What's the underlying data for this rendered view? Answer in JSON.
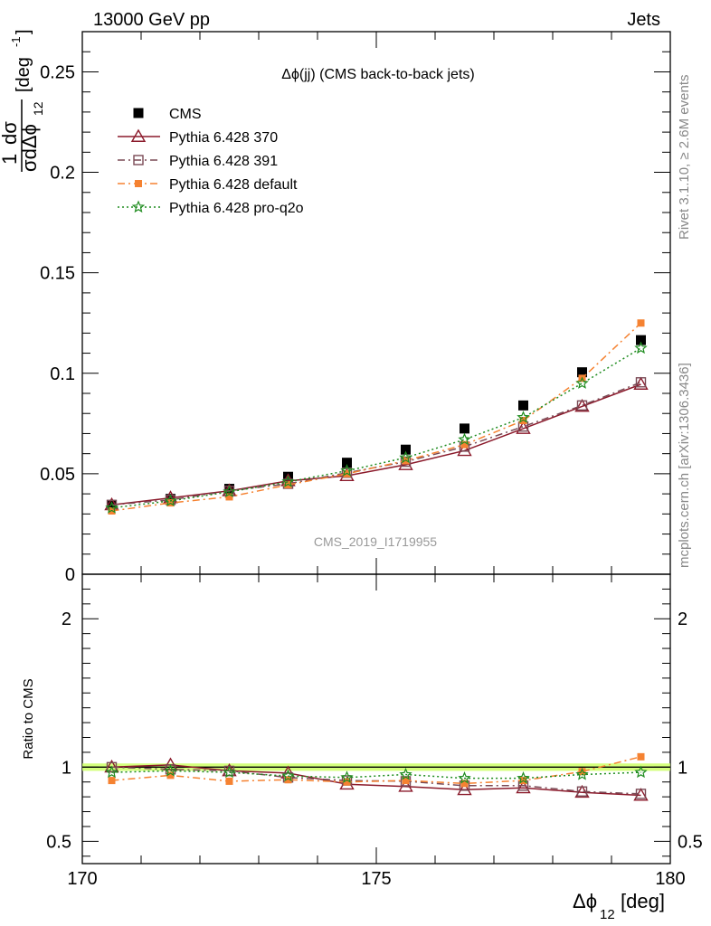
{
  "header": {
    "left": "13000 GeV pp",
    "right": "Jets"
  },
  "side_labels": {
    "rivet": "Rivet 3.1.10, ≥ 2.6M events",
    "mcplots": "mcplots.cern.ch [arXiv:1306.3436]"
  },
  "analysis_id": "CMS_2019_I1719955",
  "chart_data": [
    {
      "type": "scatter",
      "title": "Δϕ(jj) (CMS back-to-back jets)",
      "ylabel": "1/σ dσ/dΔϕ_12 [deg^-1]",
      "xlim": [
        170,
        180
      ],
      "ylim": [
        0,
        0.27
      ],
      "yticks": [
        0,
        0.05,
        0.1,
        0.15,
        0.2,
        0.25
      ],
      "ytick_labels": [
        "0",
        "0.05",
        "0.1",
        "0.15",
        "0.2",
        "0.25"
      ],
      "legend_position": "top-left",
      "x": [
        170.5,
        171.5,
        172.5,
        173.5,
        174.5,
        175.5,
        176.5,
        177.5,
        178.5,
        179.5
      ],
      "series": [
        {
          "name": "CMS",
          "color": "#000000",
          "marker": "filled-square",
          "line": "none",
          "values": [
            0.0345,
            0.0375,
            0.0425,
            0.0485,
            0.0555,
            0.062,
            0.0725,
            0.084,
            0.1005,
            0.1165
          ]
        },
        {
          "name": "Pythia 6.428 370",
          "color": "#8b1a2b",
          "marker": "open-triangle",
          "line": "solid",
          "values": [
            0.0345,
            0.038,
            0.0415,
            0.0465,
            0.049,
            0.0545,
            0.0615,
            0.0725,
            0.0835,
            0.0945
          ]
        },
        {
          "name": "Pythia 6.428 391",
          "color": "#7a4a55",
          "marker": "open-square",
          "line": "dashdot",
          "values": [
            0.0345,
            0.037,
            0.0415,
            0.045,
            0.0505,
            0.056,
            0.0635,
            0.0735,
            0.084,
            0.0955
          ]
        },
        {
          "name": "Pythia 6.428 default",
          "color": "#f58231",
          "marker": "filled-square",
          "line": "dashdot",
          "values": [
            0.0315,
            0.0355,
            0.0385,
            0.0445,
            0.05,
            0.0565,
            0.0645,
            0.0765,
            0.0975,
            0.125
          ]
        },
        {
          "name": "Pythia 6.428 pro-q2o",
          "color": "#1f8c1f",
          "marker": "star",
          "line": "dotted",
          "values": [
            0.033,
            0.0365,
            0.041,
            0.046,
            0.0515,
            0.058,
            0.067,
            0.078,
            0.095,
            0.1125
          ]
        }
      ]
    },
    {
      "type": "scatter",
      "ylabel": "Ratio to CMS",
      "xlabel": "Δϕ_12 [deg]",
      "xlim": [
        170,
        180
      ],
      "ylim": [
        0.35,
        2.3
      ],
      "xticks": [
        170,
        175,
        180
      ],
      "xtick_labels": [
        "170",
        "175",
        "180"
      ],
      "yticks": [
        0.5,
        1,
        2
      ],
      "ytick_labels": [
        "0.5",
        "1",
        "2"
      ],
      "band": {
        "low": 0.975,
        "high": 1.025,
        "color": "#ccff66"
      },
      "x": [
        170.5,
        171.5,
        172.5,
        173.5,
        174.5,
        175.5,
        176.5,
        177.5,
        178.5,
        179.5
      ],
      "series": [
        {
          "name": "Pythia 6.428 370",
          "color": "#8b1a2b",
          "marker": "open-triangle",
          "line": "solid",
          "values": [
            1.0,
            1.015,
            0.975,
            0.96,
            0.885,
            0.87,
            0.848,
            0.86,
            0.83,
            0.81
          ]
        },
        {
          "name": "Pythia 6.428 391",
          "color": "#7a4a55",
          "marker": "open-square",
          "line": "dashdot",
          "values": [
            1.0,
            0.985,
            0.975,
            0.93,
            0.91,
            0.905,
            0.875,
            0.875,
            0.836,
            0.82
          ]
        },
        {
          "name": "Pythia 6.428 default",
          "color": "#f58231",
          "marker": "filled-square",
          "line": "dashdot",
          "values": [
            0.91,
            0.945,
            0.905,
            0.915,
            0.9,
            0.91,
            0.89,
            0.91,
            0.97,
            1.07
          ]
        },
        {
          "name": "Pythia 6.428 pro-q2o",
          "color": "#1f8c1f",
          "marker": "star",
          "line": "dotted",
          "values": [
            0.965,
            0.975,
            0.965,
            0.94,
            0.93,
            0.95,
            0.925,
            0.925,
            0.95,
            0.965
          ]
        }
      ]
    }
  ]
}
